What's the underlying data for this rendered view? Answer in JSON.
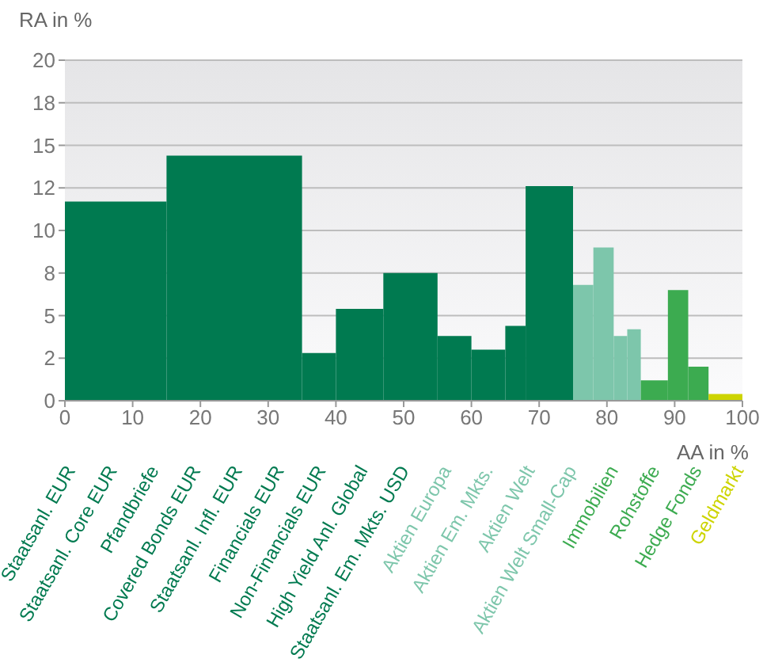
{
  "chart_data": {
    "type": "histogram",
    "ylabel": "RA in %",
    "xlabel": "AA in %",
    "categories": [
      "Staatsanl. EUR",
      "Staatsanl. Core EUR",
      "Pfandbriefe",
      "Covered Bonds EUR",
      "Staatsanl. Infl. EUR",
      "Financials EUR",
      "Non-Financials EUR",
      "High Yield Anl. Global",
      "Staatsanl. Em. Mkts. USD",
      "Aktien Europa",
      "Aktien Em. Mkts.",
      "Aktien Welt",
      "Aktien Welt Small-Cap",
      "Immobilien",
      "Rohstoffe",
      "Hedge Fonds",
      "Geldmarkt"
    ],
    "bins": [
      0,
      15,
      35,
      40,
      47,
      55,
      60,
      65,
      68,
      75,
      78,
      81,
      83,
      85,
      89,
      92,
      95,
      100
    ],
    "values": [
      11.7,
      14.4,
      2.8,
      5.4,
      7.5,
      3.8,
      3.0,
      4.4,
      12.6,
      6.8,
      9.0,
      3.8,
      4.2,
      1.2,
      6.5,
      2.0,
      0.4
    ],
    "colors": [
      "#007a50",
      "#007a50",
      "#007a50",
      "#007a50",
      "#007a50",
      "#007a50",
      "#007a50",
      "#007a50",
      "#007a50",
      "#7dc6ab",
      "#7dc6ab",
      "#7dc6ab",
      "#7dc6ab",
      "#3cab50",
      "#3cab50",
      "#3cab50",
      "#cdd400"
    ],
    "xlim": [
      0,
      100
    ],
    "xticks": [
      0,
      10,
      20,
      30,
      40,
      50,
      60,
      70,
      80,
      90,
      100
    ],
    "ylim": [
      0,
      20
    ],
    "yticks": [
      0,
      {
        "value": 2.5,
        "label": "2"
      },
      5,
      {
        "value": 7.5,
        "label": "8"
      },
      10,
      {
        "value": 12.5,
        "label": "12"
      },
      15,
      {
        "value": 17.5,
        "label": "18"
      },
      20
    ],
    "grid": "y"
  }
}
